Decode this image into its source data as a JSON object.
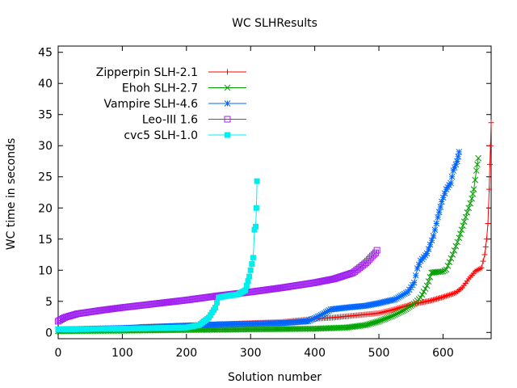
{
  "chart_data": {
    "type": "line",
    "title": "WC SLHResults",
    "xlabel": "Solution number",
    "ylabel": "WC time in seconds",
    "xlim": [
      0,
      675
    ],
    "ylim": [
      -1,
      46
    ],
    "xticks": [
      0,
      100,
      200,
      300,
      400,
      500,
      600
    ],
    "yticks": [
      0,
      5,
      10,
      15,
      20,
      25,
      30,
      35,
      40,
      45
    ],
    "grid": false,
    "legend_position": "top-left",
    "series": [
      {
        "name": "Zipperpin SLH-2.1",
        "color": "#ff0000",
        "marker": "plus",
        "points": [
          [
            0,
            0.3
          ],
          [
            50,
            0.4
          ],
          [
            100,
            0.6
          ],
          [
            130,
            0.9
          ],
          [
            200,
            1.1
          ],
          [
            250,
            1.3
          ],
          [
            300,
            1.5
          ],
          [
            350,
            1.7
          ],
          [
            400,
            2.2
          ],
          [
            430,
            2.4
          ],
          [
            460,
            2.7
          ],
          [
            480,
            2.9
          ],
          [
            500,
            3.1
          ],
          [
            520,
            3.6
          ],
          [
            540,
            4.2
          ],
          [
            560,
            4.7
          ],
          [
            580,
            5.1
          ],
          [
            600,
            5.7
          ],
          [
            620,
            6.4
          ],
          [
            630,
            7.2
          ],
          [
            640,
            8.6
          ],
          [
            650,
            9.8
          ],
          [
            660,
            10.4
          ],
          [
            665,
            12.5
          ],
          [
            668,
            15.0
          ],
          [
            670,
            17.5
          ],
          [
            672,
            23.0
          ],
          [
            673,
            27.0
          ],
          [
            674,
            30.0
          ],
          [
            675,
            33.7
          ]
        ]
      },
      {
        "name": "Ehoh SLH-2.7",
        "color": "#00a000",
        "marker": "x",
        "points": [
          [
            0,
            0.2
          ],
          [
            100,
            0.3
          ],
          [
            200,
            0.4
          ],
          [
            300,
            0.5
          ],
          [
            400,
            0.6
          ],
          [
            450,
            0.8
          ],
          [
            480,
            1.2
          ],
          [
            500,
            1.8
          ],
          [
            520,
            2.6
          ],
          [
            540,
            3.6
          ],
          [
            555,
            4.6
          ],
          [
            565,
            5.6
          ],
          [
            575,
            7.5
          ],
          [
            582,
            9.6
          ],
          [
            590,
            9.7
          ],
          [
            600,
            9.8
          ],
          [
            605,
            10.1
          ],
          [
            615,
            12.5
          ],
          [
            625,
            15.2
          ],
          [
            633,
            17.8
          ],
          [
            640,
            20.0
          ],
          [
            645,
            21.5
          ],
          [
            648,
            23.0
          ],
          [
            652,
            26.0
          ],
          [
            655,
            28.0
          ]
        ]
      },
      {
        "name": "Vampire SLH-4.6",
        "color": "#0066ff",
        "marker": "star",
        "points": [
          [
            0,
            0.5
          ],
          [
            50,
            0.6
          ],
          [
            100,
            0.7
          ],
          [
            150,
            0.9
          ],
          [
            200,
            1.1
          ],
          [
            250,
            1.3
          ],
          [
            300,
            1.4
          ],
          [
            350,
            1.5
          ],
          [
            390,
            1.8
          ],
          [
            410,
            2.8
          ],
          [
            425,
            3.7
          ],
          [
            450,
            4.0
          ],
          [
            480,
            4.3
          ],
          [
            500,
            4.7
          ],
          [
            525,
            5.3
          ],
          [
            545,
            6.5
          ],
          [
            555,
            8.0
          ],
          [
            560,
            10.3
          ],
          [
            565,
            11.5
          ],
          [
            575,
            12.7
          ],
          [
            585,
            15.5
          ],
          [
            592,
            18.5
          ],
          [
            598,
            21.0
          ],
          [
            605,
            23.0
          ],
          [
            612,
            24.0
          ],
          [
            616,
            26.0
          ],
          [
            622,
            27.5
          ],
          [
            625,
            29.0
          ]
        ]
      },
      {
        "name": "Leo-III 1.6",
        "color": "#a020f0",
        "marker": "square-open",
        "points": [
          [
            0,
            1.8
          ],
          [
            10,
            2.4
          ],
          [
            30,
            3.0
          ],
          [
            70,
            3.6
          ],
          [
            100,
            4.0
          ],
          [
            150,
            4.6
          ],
          [
            200,
            5.2
          ],
          [
            250,
            5.9
          ],
          [
            300,
            6.5
          ],
          [
            350,
            7.2
          ],
          [
            400,
            8.0
          ],
          [
            430,
            8.6
          ],
          [
            460,
            9.6
          ],
          [
            480,
            11.2
          ],
          [
            490,
            12.3
          ],
          [
            495,
            12.8
          ],
          [
            497,
            13.2
          ]
        ]
      },
      {
        "name": "cvc5 SLH-1.0",
        "color": "#00eeee",
        "marker": "square-filled",
        "points": [
          [
            0,
            0.5
          ],
          [
            100,
            0.6
          ],
          [
            150,
            0.7
          ],
          [
            200,
            0.8
          ],
          [
            220,
            1.2
          ],
          [
            235,
            2.4
          ],
          [
            245,
            4.0
          ],
          [
            250,
            5.6
          ],
          [
            265,
            5.9
          ],
          [
            280,
            6.1
          ],
          [
            292,
            6.8
          ],
          [
            298,
            9.0
          ],
          [
            304,
            12.0
          ],
          [
            306,
            16.5
          ],
          [
            308,
            17.0
          ],
          [
            309,
            20.0
          ],
          [
            310,
            24.3
          ]
        ]
      }
    ]
  }
}
